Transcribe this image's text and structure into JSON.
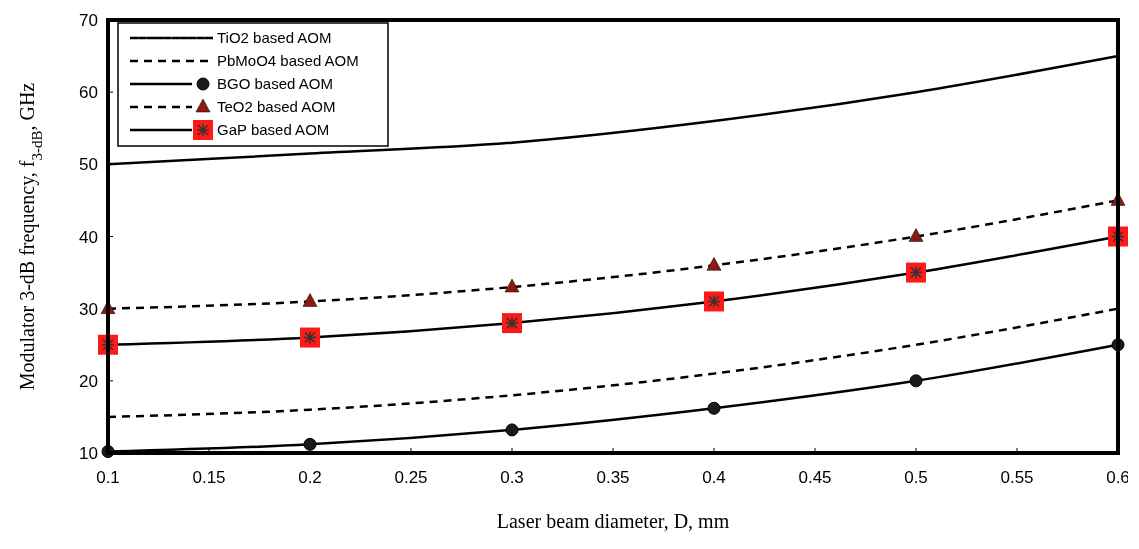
{
  "chart_data": {
    "type": "line",
    "xlabel": "Laser beam diameter, D, mm",
    "ylabel": "Modulator 3-dB frequency, f$_{3-dB}$, GHz",
    "x": [
      0.1,
      0.2,
      0.3,
      0.4,
      0.5,
      0.6
    ],
    "xlim": [
      0.1,
      0.6
    ],
    "xticks": [
      0.1,
      0.15,
      0.2,
      0.25,
      0.3,
      0.35,
      0.4,
      0.45,
      0.5,
      0.55,
      0.6
    ],
    "ylim": [
      10,
      70
    ],
    "yticks": [
      10,
      20,
      30,
      40,
      50,
      60,
      70
    ],
    "grid": false,
    "legend": "top left",
    "series": [
      {
        "name": "TiO2 based AOM",
        "color": "#000000",
        "values": [
          50,
          51.5,
          53,
          56,
          60,
          65
        ],
        "marker": "none",
        "line_style": "solid"
      },
      {
        "name": "PbMoO4 based AOM",
        "color": "#000000",
        "values": [
          15,
          16,
          18,
          21,
          25,
          30
        ],
        "marker": "none",
        "line_style": "dashed"
      },
      {
        "name": "BGO based AOM",
        "color": "#1a1a1a",
        "values": [
          10.2,
          11.2,
          13.2,
          16.2,
          20,
          25
        ],
        "marker": "circle",
        "line_style": "solid"
      },
      {
        "name": "TeO2 based AOM",
        "color": "#8b1a10",
        "values": [
          30,
          31,
          33,
          36,
          40,
          45
        ],
        "marker": "triangle",
        "line_style": "dashed"
      },
      {
        "name": "GaP based AOM",
        "color": "#ff1a1a",
        "values": [
          25,
          26,
          28,
          31,
          35,
          40
        ],
        "marker": "square",
        "line_style": "solid"
      }
    ]
  }
}
